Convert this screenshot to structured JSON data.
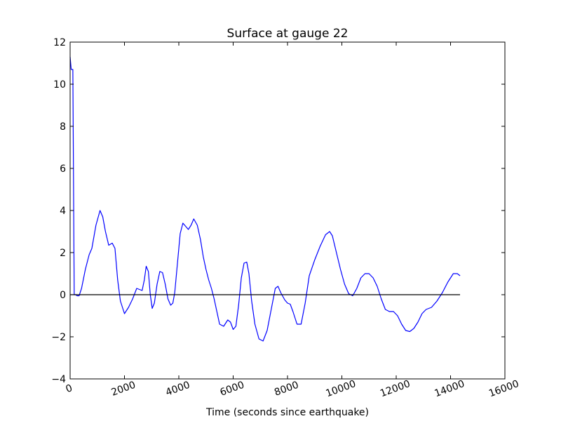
{
  "chart_data": {
    "type": "line",
    "title": "Surface at gauge 22",
    "xlabel": "Time (seconds since earthquake)",
    "ylabel": "",
    "xlim": [
      0,
      16000
    ],
    "ylim": [
      -4,
      12
    ],
    "x_ticks": [
      0,
      2000,
      4000,
      6000,
      8000,
      10000,
      12000,
      14000,
      16000
    ],
    "y_ticks": [
      -4,
      -2,
      0,
      2,
      4,
      6,
      8,
      10,
      12
    ],
    "x_tick_labels": [
      "0",
      "2000",
      "4000",
      "6000",
      "8000",
      "10000",
      "12000",
      "14000",
      "16000"
    ],
    "y_tick_labels": [
      "−4",
      "−2",
      "0",
      "2",
      "4",
      "6",
      "8",
      "10",
      "12"
    ],
    "x_tick_rotation": -20,
    "grid": false,
    "series": [
      {
        "color": "#0000ff",
        "x": [
          0,
          40,
          100,
          150,
          175,
          200,
          260,
          330,
          420,
          560,
          700,
          800,
          950,
          1100,
          1200,
          1300,
          1420,
          1550,
          1650,
          1750,
          1850,
          2000,
          2150,
          2300,
          2450,
          2550,
          2650,
          2730,
          2800,
          2880,
          2950,
          3020,
          3100,
          3200,
          3300,
          3400,
          3500,
          3600,
          3700,
          3780,
          3850,
          3950,
          4050,
          4150,
          4250,
          4350,
          4450,
          4550,
          4680,
          4800,
          4900,
          5000,
          5100,
          5200,
          5300,
          5400,
          5500,
          5650,
          5800,
          5900,
          6000,
          6100,
          6200,
          6300,
          6400,
          6500,
          6580,
          6680,
          6800,
          6950,
          7100,
          7250,
          7400,
          7550,
          7650,
          7750,
          7900,
          8000,
          8100,
          8200,
          8350,
          8500,
          8650,
          8800,
          9000,
          9200,
          9400,
          9550,
          9650,
          9800,
          9950,
          10100,
          10250,
          10400,
          10550,
          10700,
          10850,
          11000,
          11150,
          11300,
          11450,
          11600,
          11750,
          11900,
          12050,
          12200,
          12350,
          12500,
          12650,
          12800,
          12950,
          13100,
          13300,
          13500,
          13700,
          13900,
          14100,
          14250,
          14350
        ],
        "y": [
          11.3,
          10.7,
          10.7,
          0.0,
          0.0,
          0.0,
          -0.05,
          -0.05,
          0.3,
          1.2,
          1.9,
          2.2,
          3.3,
          4.0,
          3.7,
          3.0,
          2.35,
          2.45,
          2.2,
          0.7,
          -0.3,
          -0.9,
          -0.6,
          -0.2,
          0.3,
          0.25,
          0.2,
          0.7,
          1.35,
          1.1,
          0.0,
          -0.65,
          -0.4,
          0.5,
          1.1,
          1.05,
          0.5,
          -0.2,
          -0.5,
          -0.4,
          0.1,
          1.5,
          2.9,
          3.4,
          3.25,
          3.1,
          3.3,
          3.6,
          3.3,
          2.6,
          1.8,
          1.2,
          0.7,
          0.3,
          -0.2,
          -0.8,
          -1.4,
          -1.5,
          -1.2,
          -1.3,
          -1.65,
          -1.5,
          -0.5,
          0.8,
          1.5,
          1.55,
          1.0,
          -0.3,
          -1.4,
          -2.1,
          -2.2,
          -1.7,
          -0.7,
          0.3,
          0.4,
          0.1,
          -0.25,
          -0.4,
          -0.45,
          -0.8,
          -1.4,
          -1.4,
          -0.4,
          0.9,
          1.65,
          2.3,
          2.85,
          3.0,
          2.8,
          2.0,
          1.2,
          0.5,
          0.05,
          -0.05,
          0.3,
          0.8,
          1.0,
          1.0,
          0.8,
          0.4,
          -0.2,
          -0.7,
          -0.8,
          -0.8,
          -1.0,
          -1.4,
          -1.7,
          -1.75,
          -1.6,
          -1.3,
          -0.9,
          -0.7,
          -0.6,
          -0.3,
          0.1,
          0.6,
          1.0,
          1.0,
          0.9
        ]
      },
      {
        "color": "#000000",
        "x": [
          0,
          14350
        ],
        "y": [
          0,
          0
        ]
      }
    ]
  }
}
